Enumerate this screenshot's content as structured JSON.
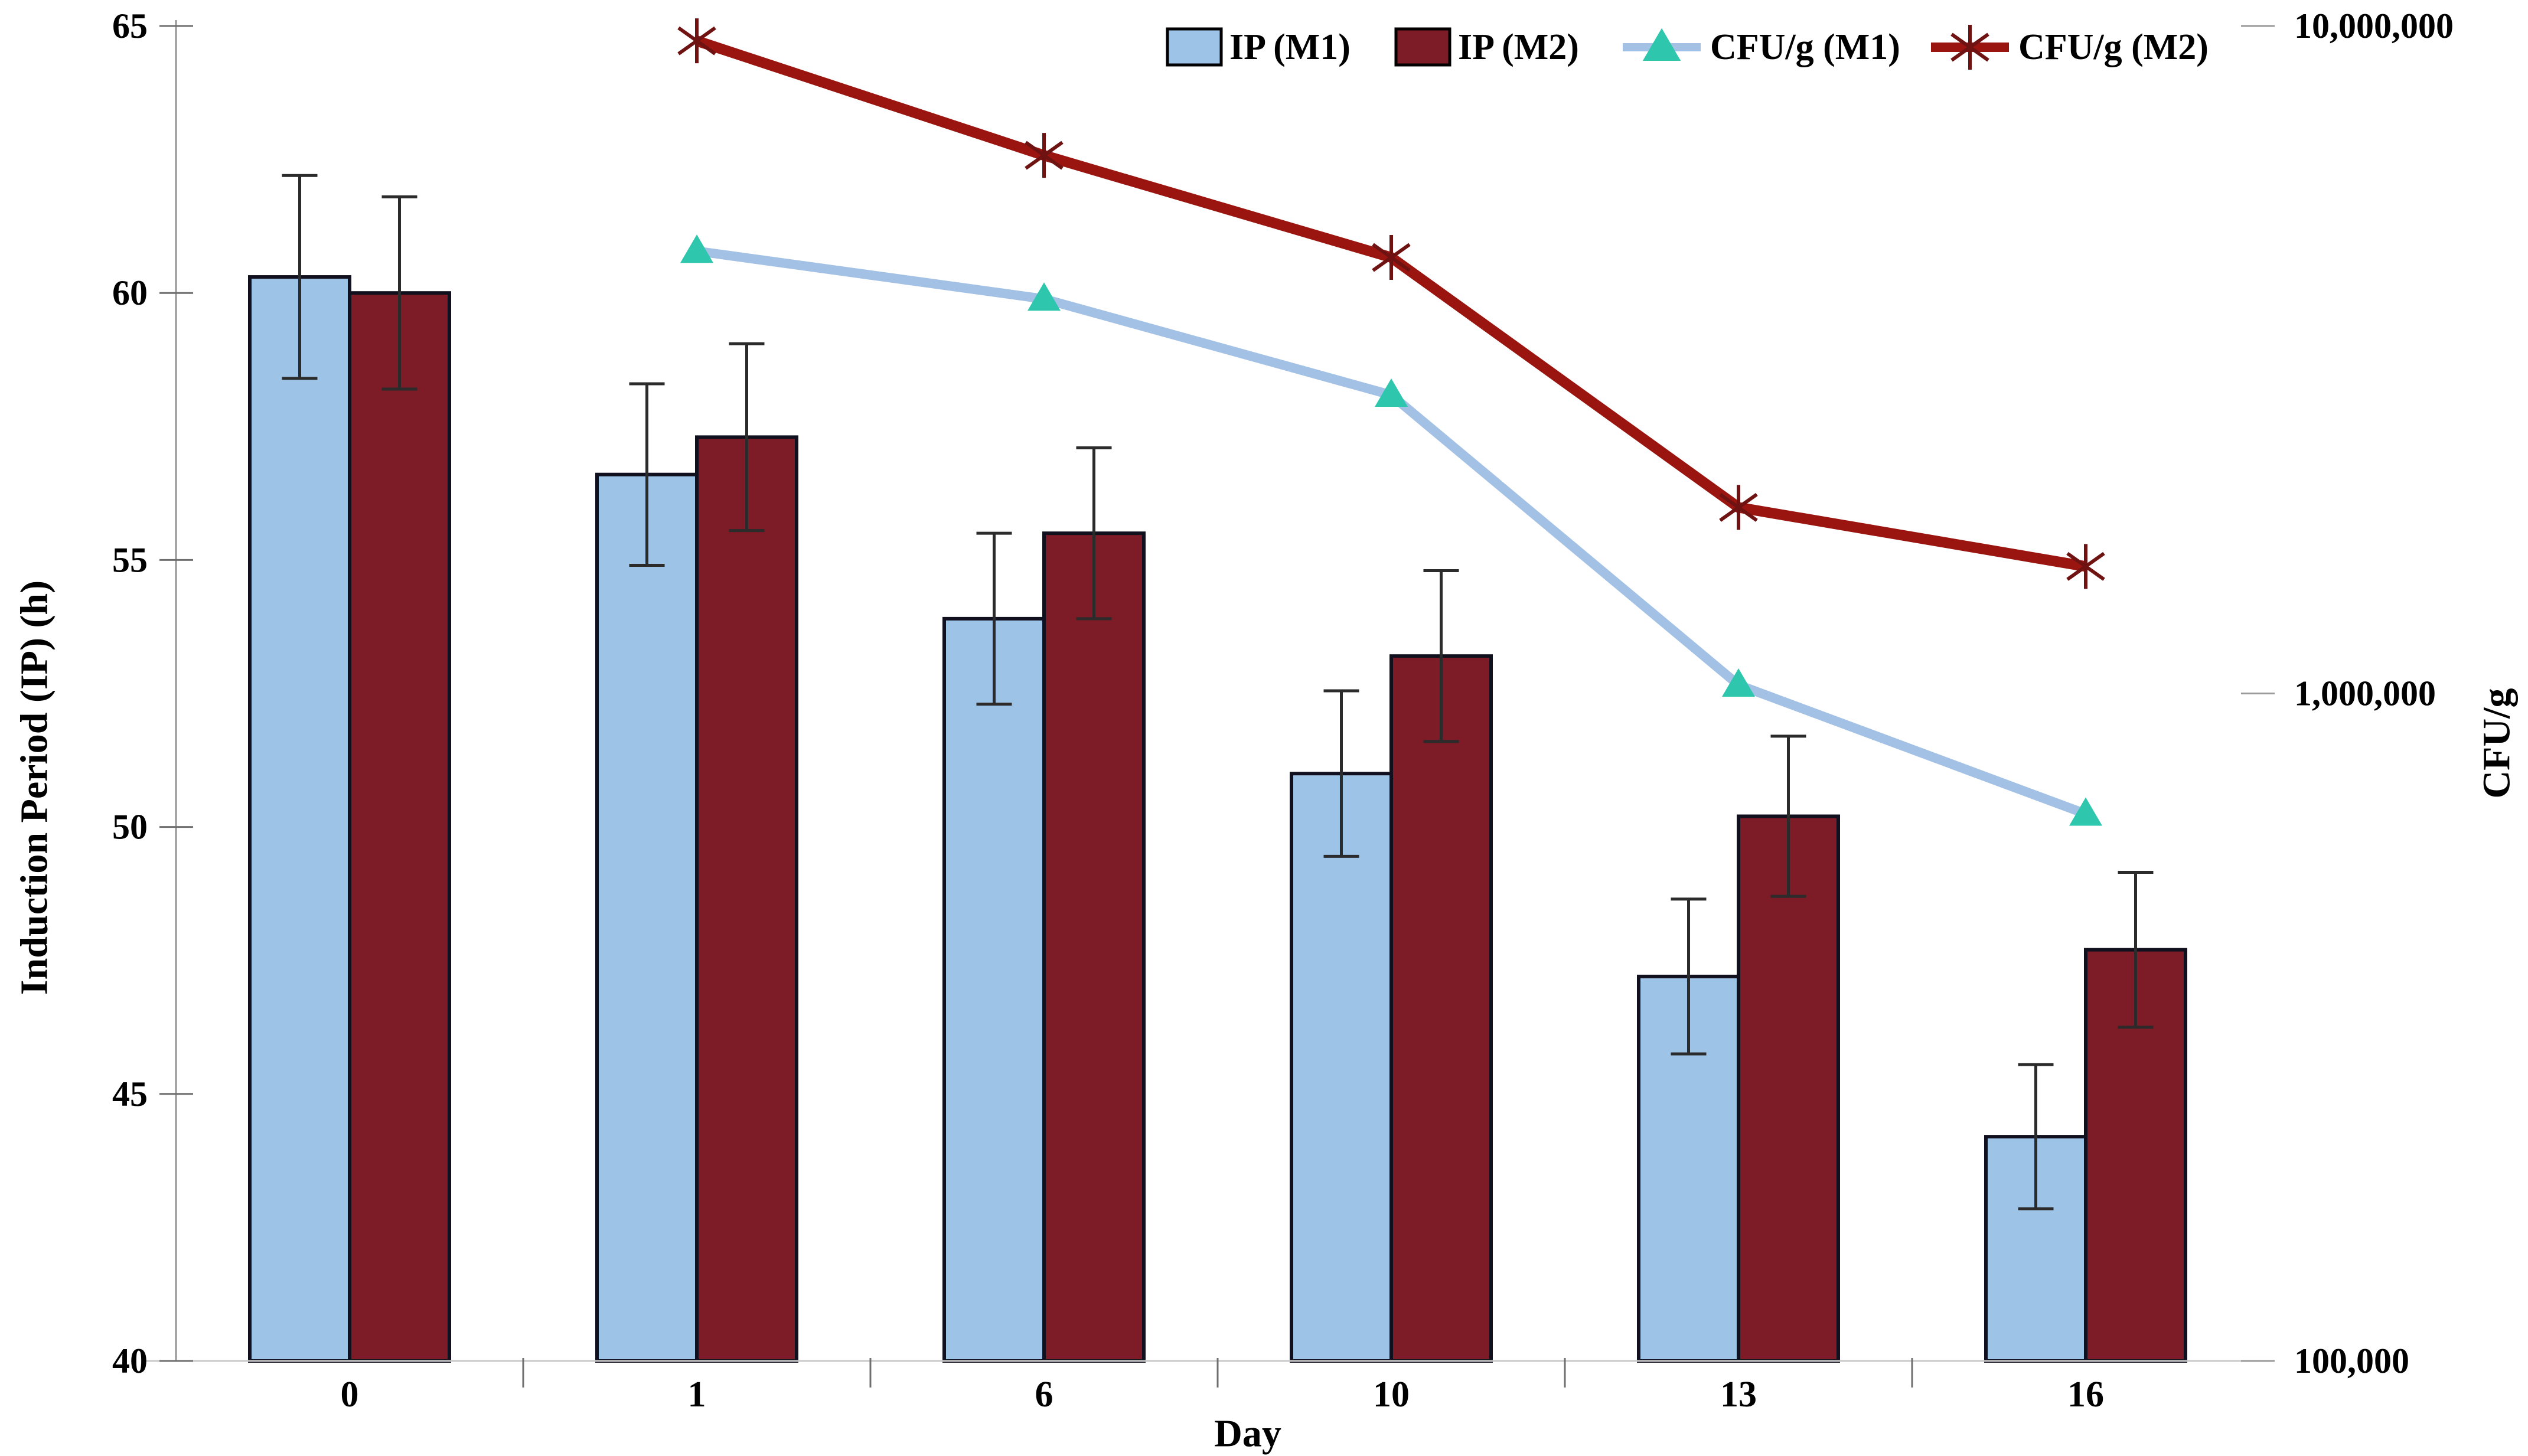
{
  "chart_data": {
    "type": "combo_bar_line",
    "categories": [
      "0",
      "1",
      "6",
      "10",
      "13",
      "16"
    ],
    "x_axis": {
      "label": "Day"
    },
    "left_axis": {
      "label": "Induction Period (IP) (h)",
      "min": 40,
      "max": 65,
      "tick_step": 5,
      "tick_labels": [
        "65",
        "60",
        "55",
        "50",
        "45",
        "40"
      ]
    },
    "right_axis": {
      "label": "CFU/g",
      "scale": "log10",
      "min": 100000,
      "max": 10000000,
      "ticks": [
        {
          "value": 10000000,
          "label": "10,000,000"
        },
        {
          "value": 1000000,
          "label": "1,000,000"
        },
        {
          "value": 100000,
          "label": "100,000"
        }
      ]
    },
    "bar_series": [
      {
        "name": "IP (M1)",
        "color": "#9dc3e6",
        "outline": "#10101e",
        "values": [
          60.3,
          56.6,
          53.9,
          51.0,
          47.2,
          44.2
        ],
        "errors": [
          1.9,
          1.7,
          1.6,
          1.55,
          1.45,
          1.35
        ]
      },
      {
        "name": "IP (M2)",
        "color": "#7d1b26",
        "outline": "#10101e",
        "values": [
          60.0,
          57.3,
          55.5,
          53.2,
          50.2,
          47.7
        ],
        "errors": [
          1.8,
          1.75,
          1.6,
          1.6,
          1.5,
          1.45
        ]
      }
    ],
    "line_series": [
      {
        "name": "CFU/g (M1)",
        "color": "#a3c1e5",
        "stroke_width": 16,
        "marker": "triangle",
        "marker_color": "#2ec6ad",
        "values": [
          null,
          4600000,
          3900000,
          2800000,
          1030000,
          660000
        ]
      },
      {
        "name": "CFU/g (M2)",
        "color": "#9a1510",
        "stroke_width": 18,
        "marker": "asterisk",
        "marker_color": "#6e1212",
        "values": [
          null,
          9500000,
          6400000,
          4500000,
          1900000,
          1550000
        ]
      }
    ],
    "legend": {
      "position": "top-right",
      "entries": [
        "IP (M1)",
        "IP (M2)",
        "CFU/g (M1)",
        "CFU/g (M2)"
      ]
    },
    "error_bar_color": "#2b2b2b",
    "axis_line_color": "#a6a6a6",
    "tick_color": "#6f6f6f",
    "grid": false
  }
}
